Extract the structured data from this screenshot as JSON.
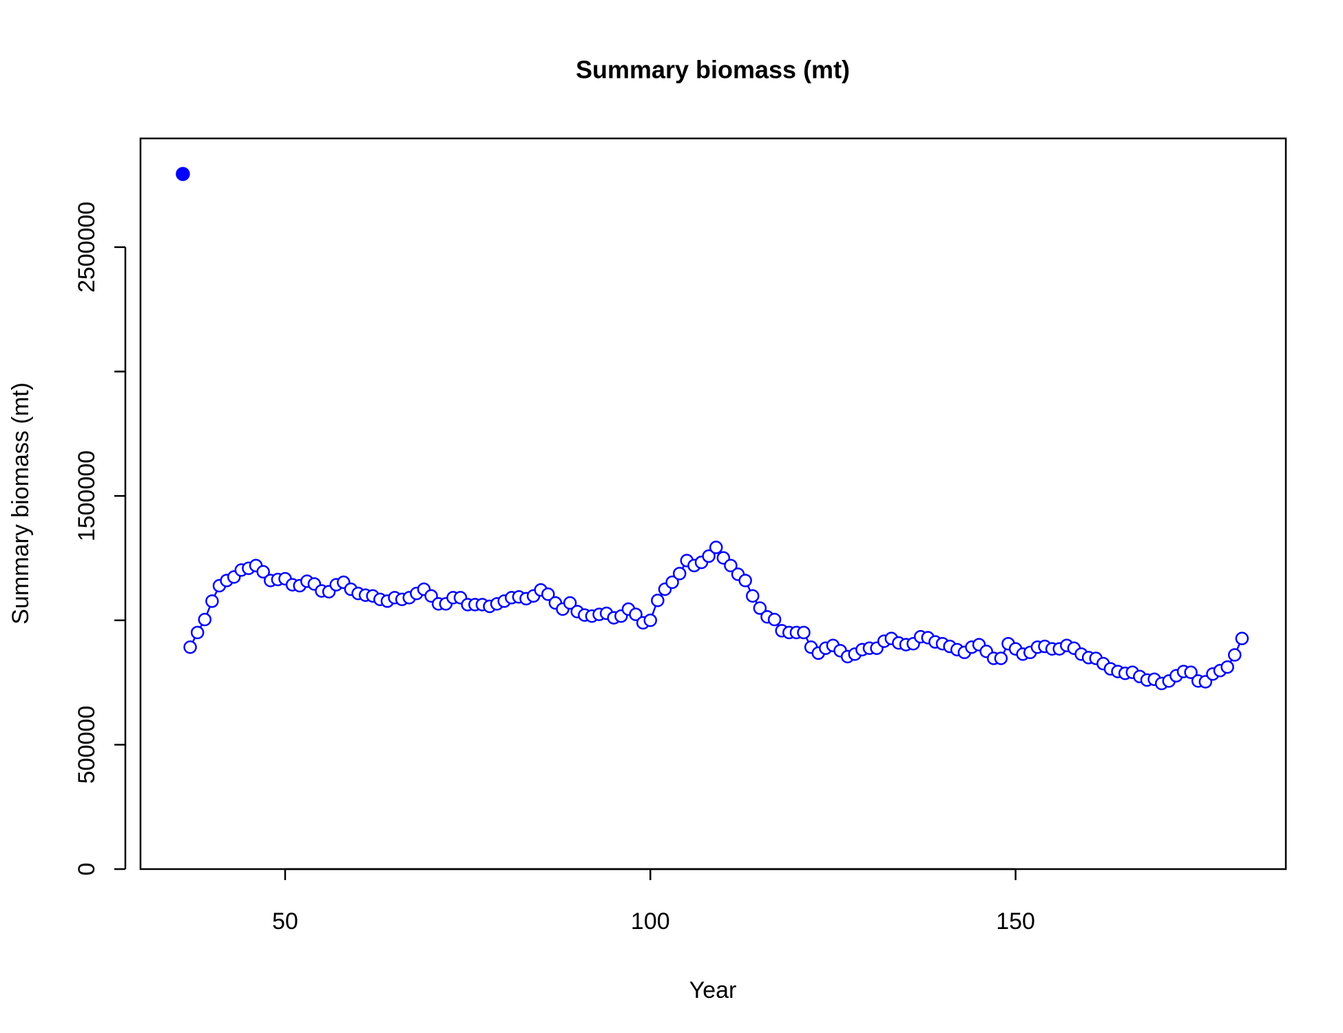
{
  "chart_data": {
    "type": "line",
    "title": "Summary biomass (mt)",
    "x_label": "Year",
    "y_label": "Summary biomass (mt)",
    "xlim": [
      30.2,
      187
    ],
    "xticks": [
      50,
      100,
      150
    ],
    "ylim": [
      0,
      2937000
    ],
    "yticks": [
      0,
      500000,
      {
        "value": 1000000,
        "label": null
      },
      1500000,
      {
        "value": 2000000,
        "label": null
      },
      2500000
    ],
    "grid": false,
    "series": [
      {
        "color": "#0000ff",
        "marker": "filled",
        "line": false,
        "x": [
          36
        ],
        "values": [
          2794000
        ]
      },
      {
        "color": "#0000ff",
        "marker": "open",
        "line": true,
        "x": [
          37,
          38,
          39,
          40,
          41,
          42,
          43,
          44,
          45,
          46,
          47,
          48,
          49,
          50,
          51,
          52,
          53,
          54,
          55,
          56,
          57,
          58,
          59,
          60,
          61,
          62,
          63,
          64,
          65,
          66,
          67,
          68,
          69,
          70,
          71,
          72,
          73,
          74,
          75,
          76,
          77,
          78,
          79,
          80,
          81,
          82,
          83,
          84,
          85,
          86,
          87,
          88,
          89,
          90,
          91,
          92,
          93,
          94,
          95,
          96,
          97,
          98,
          99,
          100,
          101,
          102,
          103,
          104,
          105,
          106,
          107,
          108,
          109,
          110,
          111,
          112,
          113,
          114,
          115,
          116,
          117,
          118,
          119,
          120,
          121,
          122,
          123,
          124,
          125,
          126,
          127,
          128,
          129,
          130,
          131,
          132,
          133,
          134,
          135,
          136,
          137,
          138,
          139,
          140,
          141,
          142,
          143,
          144,
          145,
          146,
          147,
          148,
          149,
          150,
          151,
          152,
          153,
          154,
          155,
          156,
          157,
          158,
          159,
          160,
          161,
          162,
          163,
          164,
          165,
          166,
          167,
          168,
          169,
          170,
          171,
          172,
          173,
          174,
          175,
          176,
          177,
          178,
          179,
          180,
          181
        ],
        "values": [
          892000,
          951000,
          1003000,
          1077000,
          1139000,
          1160000,
          1174000,
          1202000,
          1209000,
          1220000,
          1195000,
          1160000,
          1164000,
          1167000,
          1143000,
          1139000,
          1157000,
          1146000,
          1118000,
          1115000,
          1143000,
          1153000,
          1125000,
          1108000,
          1101000,
          1098000,
          1084000,
          1077000,
          1091000,
          1084000,
          1091000,
          1108000,
          1125000,
          1098000,
          1066000,
          1066000,
          1091000,
          1091000,
          1063000,
          1063000,
          1063000,
          1056000,
          1066000,
          1077000,
          1091000,
          1094000,
          1087000,
          1098000,
          1122000,
          1105000,
          1070000,
          1045000,
          1070000,
          1035000,
          1021000,
          1017000,
          1024000,
          1028000,
          1010000,
          1017000,
          1045000,
          1024000,
          990000,
          1000000,
          1080000,
          1125000,
          1153000,
          1188000,
          1240000,
          1220000,
          1233000,
          1258000,
          1293000,
          1251000,
          1220000,
          1185000,
          1160000,
          1098000,
          1049000,
          1014000,
          1003000,
          958000,
          951000,
          951000,
          951000,
          892000,
          868000,
          888000,
          899000,
          878000,
          854000,
          864000,
          882000,
          888000,
          888000,
          916000,
          927000,
          909000,
          902000,
          906000,
          934000,
          930000,
          913000,
          906000,
          895000,
          882000,
          871000,
          892000,
          902000,
          875000,
          847000,
          847000,
          906000,
          885000,
          864000,
          871000,
          892000,
          895000,
          885000,
          885000,
          899000,
          888000,
          864000,
          850000,
          847000,
          826000,
          805000,
          794000,
          787000,
          791000,
          774000,
          760000,
          763000,
          746000,
          756000,
          777000,
          794000,
          791000,
          756000,
          753000,
          784000,
          798000,
          812000,
          861000,
          927000
        ]
      }
    ]
  }
}
